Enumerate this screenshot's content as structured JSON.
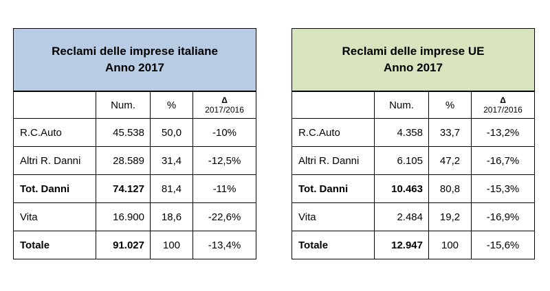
{
  "tables": [
    {
      "title_line1": "Reclami delle imprese italiane",
      "title_line2": "Anno 2017",
      "header": {
        "num": "Num.",
        "pct": "%",
        "delta_symbol": "Δ",
        "delta_years": "2017/2016"
      },
      "rows": [
        {
          "label": "R.C.Auto",
          "num": "45.538",
          "pct": "50,0",
          "delta": "-10%"
        },
        {
          "label": "Altri R. Danni",
          "num": "28.589",
          "pct": "31,4",
          "delta": "-12,5%"
        },
        {
          "label": "Tot. Danni",
          "num": "74.127",
          "pct": "81,4",
          "delta": "-11%"
        },
        {
          "label": "Vita",
          "num": "16.900",
          "pct": "18,6",
          "delta": "-22,6%"
        },
        {
          "label": "Totale",
          "num": "91.027",
          "pct": "100",
          "delta": "-13,4%"
        }
      ]
    },
    {
      "title_line1": "Reclami delle imprese UE",
      "title_line2": "Anno 2017",
      "header": {
        "num": "Num.",
        "pct": "%",
        "delta_symbol": "Δ",
        "delta_years": "2017/2016"
      },
      "rows": [
        {
          "label": "R.C.Auto",
          "num": "4.358",
          "pct": "33,7",
          "delta": "-13,2%"
        },
        {
          "label": "Altri R. Danni",
          "num": "6.105",
          "pct": "47,2",
          "delta": "-16,7%"
        },
        {
          "label": "Tot. Danni",
          "num": "10.463",
          "pct": "80,8",
          "delta": "-15,3%"
        },
        {
          "label": "Vita",
          "num": "2.484",
          "pct": "19,2",
          "delta": "-16,9%"
        },
        {
          "label": "Totale",
          "num": "12.947",
          "pct": "100",
          "delta": "-15,6%"
        }
      ]
    }
  ],
  "colors": {
    "italian_header_bg": "#b8cce4",
    "ue_header_bg": "#d7e4bd"
  }
}
